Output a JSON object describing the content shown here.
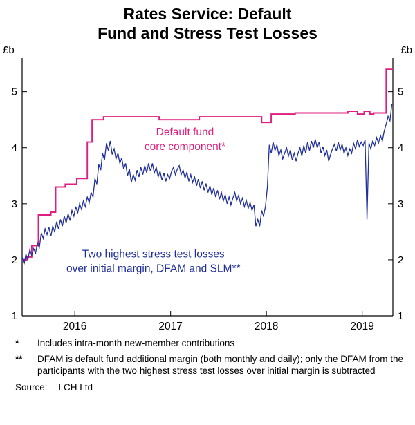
{
  "title": {
    "line1": "Rates Service: Default",
    "line2": "Fund and Stress Test Losses"
  },
  "footnotes": {
    "items": [
      {
        "marker": "*",
        "text": "Includes intra-month new-member contributions"
      },
      {
        "marker": "**",
        "text": "DFAM is default fund additional margin (both monthly and daily); only the DFAM from the participants with the two highest stress test losses over initial margin is subtracted"
      }
    ]
  },
  "source": {
    "label": "Source:",
    "value": "LCH Ltd"
  },
  "colors": {
    "pink": "#df1f7f",
    "blue": "#202f9c",
    "axis": "#000000"
  },
  "chart_data": {
    "type": "line",
    "title": "Rates Service: Default Fund and Stress Test Losses",
    "ylabel": "£b",
    "ylim": [
      1,
      5.6
    ],
    "xlim": [
      2015.45,
      2019.32
    ],
    "y_ticks": [
      1,
      2,
      3,
      4,
      5
    ],
    "x_ticks": [
      2016,
      2017,
      2018,
      2019
    ],
    "grid": false,
    "legend": "in-plot annotations",
    "annotations": [
      {
        "text": [
          "Default fund",
          "core component*"
        ],
        "x": 2017.15,
        "y": 4.22,
        "color": "#df1f7f"
      },
      {
        "text": [
          "Two highest stress test losses",
          "over initial margin, DFAM and SLM**"
        ],
        "x": 2016.82,
        "y": 2.04,
        "color": "#202f9c"
      }
    ],
    "series": [
      {
        "id": "series-default-fund-core-component",
        "name": "Default fund core component*",
        "color": "#df1f7f",
        "style": "step",
        "width": 1.9,
        "points": [
          [
            2015.45,
            2.0
          ],
          [
            2015.5,
            2.05
          ],
          [
            2015.55,
            2.25
          ],
          [
            2015.62,
            2.8
          ],
          [
            2015.75,
            2.85
          ],
          [
            2015.8,
            3.3
          ],
          [
            2015.9,
            3.35
          ],
          [
            2016.02,
            3.45
          ],
          [
            2016.13,
            4.1
          ],
          [
            2016.18,
            4.5
          ],
          [
            2016.3,
            4.55
          ],
          [
            2016.88,
            4.5
          ],
          [
            2017.3,
            4.55
          ],
          [
            2017.95,
            4.45
          ],
          [
            2018.05,
            4.6
          ],
          [
            2018.3,
            4.62
          ],
          [
            2018.85,
            4.65
          ],
          [
            2018.95,
            4.6
          ],
          [
            2019.02,
            4.65
          ],
          [
            2019.08,
            4.6
          ],
          [
            2019.12,
            4.62
          ],
          [
            2019.25,
            5.4
          ],
          [
            2019.32,
            5.4
          ]
        ]
      },
      {
        "id": "series-stress-test-losses",
        "name": "Two highest stress test losses over initial margin, DFAM and SLM**",
        "color": "#202f9c",
        "style": "line",
        "width": 1.3,
        "points": [
          [
            2015.45,
            2.05
          ],
          [
            2015.47,
            1.92
          ],
          [
            2015.49,
            2.1
          ],
          [
            2015.51,
            2.0
          ],
          [
            2015.53,
            2.18
          ],
          [
            2015.55,
            2.08
          ],
          [
            2015.57,
            2.2
          ],
          [
            2015.59,
            2.12
          ],
          [
            2015.61,
            2.3
          ],
          [
            2015.63,
            2.22
          ],
          [
            2015.65,
            2.48
          ],
          [
            2015.67,
            2.38
          ],
          [
            2015.69,
            2.55
          ],
          [
            2015.71,
            2.45
          ],
          [
            2015.73,
            2.58
          ],
          [
            2015.75,
            2.42
          ],
          [
            2015.77,
            2.6
          ],
          [
            2015.79,
            2.5
          ],
          [
            2015.81,
            2.68
          ],
          [
            2015.83,
            2.55
          ],
          [
            2015.85,
            2.72
          ],
          [
            2015.87,
            2.6
          ],
          [
            2015.89,
            2.78
          ],
          [
            2015.91,
            2.66
          ],
          [
            2015.93,
            2.82
          ],
          [
            2015.95,
            2.7
          ],
          [
            2015.97,
            2.88
          ],
          [
            2015.99,
            2.78
          ],
          [
            2016.01,
            2.95
          ],
          [
            2016.03,
            2.83
          ],
          [
            2016.05,
            3.0
          ],
          [
            2016.07,
            2.9
          ],
          [
            2016.09,
            3.05
          ],
          [
            2016.11,
            2.95
          ],
          [
            2016.13,
            3.12
          ],
          [
            2016.15,
            3.02
          ],
          [
            2016.17,
            3.2
          ],
          [
            2016.19,
            3.12
          ],
          [
            2016.21,
            3.45
          ],
          [
            2016.23,
            3.35
          ],
          [
            2016.25,
            3.7
          ],
          [
            2016.27,
            3.6
          ],
          [
            2016.29,
            3.9
          ],
          [
            2016.31,
            3.78
          ],
          [
            2016.33,
            4.08
          ],
          [
            2016.35,
            3.95
          ],
          [
            2016.37,
            4.12
          ],
          [
            2016.39,
            3.88
          ],
          [
            2016.41,
            3.98
          ],
          [
            2016.43,
            3.8
          ],
          [
            2016.45,
            3.9
          ],
          [
            2016.47,
            3.72
          ],
          [
            2016.49,
            3.82
          ],
          [
            2016.51,
            3.62
          ],
          [
            2016.53,
            3.72
          ],
          [
            2016.55,
            3.5
          ],
          [
            2016.57,
            3.62
          ],
          [
            2016.59,
            3.38
          ],
          [
            2016.61,
            3.52
          ],
          [
            2016.63,
            3.42
          ],
          [
            2016.65,
            3.6
          ],
          [
            2016.67,
            3.48
          ],
          [
            2016.69,
            3.65
          ],
          [
            2016.71,
            3.52
          ],
          [
            2016.73,
            3.68
          ],
          [
            2016.75,
            3.55
          ],
          [
            2016.77,
            3.72
          ],
          [
            2016.79,
            3.58
          ],
          [
            2016.81,
            3.72
          ],
          [
            2016.83,
            3.55
          ],
          [
            2016.85,
            3.65
          ],
          [
            2016.87,
            3.48
          ],
          [
            2016.89,
            3.58
          ],
          [
            2016.91,
            3.42
          ],
          [
            2016.93,
            3.55
          ],
          [
            2016.95,
            3.4
          ],
          [
            2016.97,
            3.52
          ],
          [
            2016.99,
            3.45
          ],
          [
            2017.01,
            3.58
          ],
          [
            2017.03,
            3.65
          ],
          [
            2017.05,
            3.52
          ],
          [
            2017.07,
            3.62
          ],
          [
            2017.09,
            3.68
          ],
          [
            2017.11,
            3.52
          ],
          [
            2017.13,
            3.6
          ],
          [
            2017.15,
            3.46
          ],
          [
            2017.17,
            3.56
          ],
          [
            2017.19,
            3.4
          ],
          [
            2017.21,
            3.52
          ],
          [
            2017.23,
            3.38
          ],
          [
            2017.25,
            3.48
          ],
          [
            2017.27,
            3.32
          ],
          [
            2017.29,
            3.44
          ],
          [
            2017.31,
            3.28
          ],
          [
            2017.33,
            3.4
          ],
          [
            2017.35,
            3.24
          ],
          [
            2017.37,
            3.36
          ],
          [
            2017.39,
            3.2
          ],
          [
            2017.41,
            3.32
          ],
          [
            2017.43,
            3.16
          ],
          [
            2017.45,
            3.28
          ],
          [
            2017.47,
            3.12
          ],
          [
            2017.49,
            3.24
          ],
          [
            2017.51,
            3.08
          ],
          [
            2017.53,
            3.2
          ],
          [
            2017.55,
            3.05
          ],
          [
            2017.57,
            3.16
          ],
          [
            2017.59,
            3.0
          ],
          [
            2017.61,
            3.12
          ],
          [
            2017.63,
            2.98
          ],
          [
            2017.65,
            3.1
          ],
          [
            2017.67,
            3.2
          ],
          [
            2017.69,
            3.05
          ],
          [
            2017.71,
            3.15
          ],
          [
            2017.73,
            3.0
          ],
          [
            2017.75,
            3.1
          ],
          [
            2017.77,
            2.95
          ],
          [
            2017.79,
            3.06
          ],
          [
            2017.81,
            2.92
          ],
          [
            2017.83,
            3.02
          ],
          [
            2017.85,
            2.88
          ],
          [
            2017.87,
            2.98
          ],
          [
            2017.89,
            2.6
          ],
          [
            2017.91,
            2.72
          ],
          [
            2017.93,
            2.6
          ],
          [
            2017.95,
            2.88
          ],
          [
            2017.97,
            2.78
          ],
          [
            2017.99,
            2.95
          ],
          [
            2018.01,
            3.3
          ],
          [
            2018.03,
            4.05
          ],
          [
            2018.05,
            3.9
          ],
          [
            2018.07,
            4.1
          ],
          [
            2018.09,
            3.95
          ],
          [
            2018.11,
            4.05
          ],
          [
            2018.13,
            3.86
          ],
          [
            2018.15,
            3.96
          ],
          [
            2018.17,
            3.8
          ],
          [
            2018.19,
            3.9
          ],
          [
            2018.21,
            4.0
          ],
          [
            2018.23,
            3.85
          ],
          [
            2018.25,
            3.96
          ],
          [
            2018.27,
            3.78
          ],
          [
            2018.29,
            3.9
          ],
          [
            2018.31,
            3.76
          ],
          [
            2018.33,
            3.9
          ],
          [
            2018.35,
            4.0
          ],
          [
            2018.37,
            3.85
          ],
          [
            2018.39,
            4.04
          ],
          [
            2018.41,
            3.9
          ],
          [
            2018.43,
            4.1
          ],
          [
            2018.45,
            3.95
          ],
          [
            2018.47,
            4.12
          ],
          [
            2018.49,
            4.0
          ],
          [
            2018.51,
            4.15
          ],
          [
            2018.53,
            4.0
          ],
          [
            2018.55,
            4.1
          ],
          [
            2018.57,
            3.9
          ],
          [
            2018.59,
            4.02
          ],
          [
            2018.61,
            3.86
          ],
          [
            2018.63,
            3.96
          ],
          [
            2018.65,
            3.76
          ],
          [
            2018.67,
            3.88
          ],
          [
            2018.69,
            3.98
          ],
          [
            2018.71,
            4.06
          ],
          [
            2018.73,
            3.94
          ],
          [
            2018.75,
            4.1
          ],
          [
            2018.77,
            3.96
          ],
          [
            2018.79,
            4.06
          ],
          [
            2018.81,
            3.9
          ],
          [
            2018.83,
            4.0
          ],
          [
            2018.85,
            3.86
          ],
          [
            2018.87,
            3.98
          ],
          [
            2018.89,
            3.9
          ],
          [
            2018.91,
            4.08
          ],
          [
            2018.93,
            3.98
          ],
          [
            2018.95,
            4.14
          ],
          [
            2018.97,
            4.02
          ],
          [
            2018.99,
            4.1
          ],
          [
            2019.01,
            4.04
          ],
          [
            2019.03,
            4.14
          ],
          [
            2019.05,
            2.72
          ],
          [
            2019.07,
            4.08
          ],
          [
            2019.09,
            3.98
          ],
          [
            2019.11,
            4.12
          ],
          [
            2019.13,
            4.04
          ],
          [
            2019.15,
            4.18
          ],
          [
            2019.17,
            4.08
          ],
          [
            2019.19,
            4.22
          ],
          [
            2019.21,
            4.12
          ],
          [
            2019.23,
            4.3
          ],
          [
            2019.25,
            4.42
          ],
          [
            2019.27,
            4.56
          ],
          [
            2019.29,
            4.48
          ],
          [
            2019.31,
            4.78
          ]
        ]
      }
    ]
  }
}
